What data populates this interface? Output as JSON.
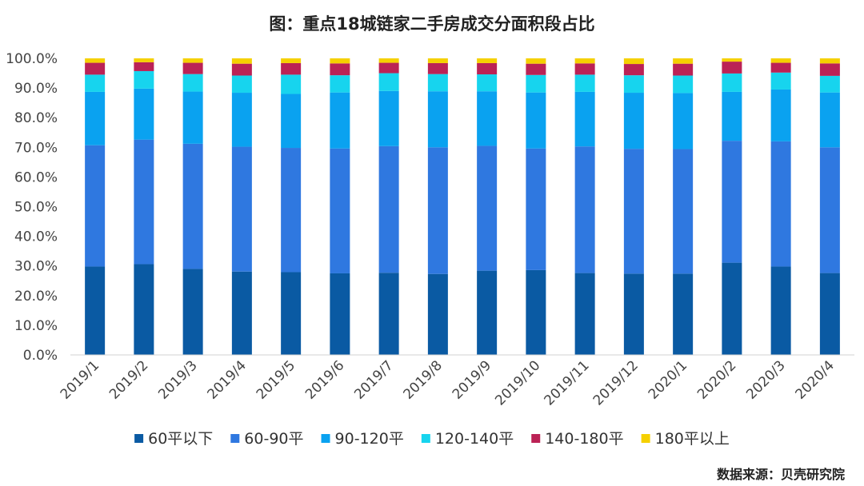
{
  "chart_data": {
    "type": "bar",
    "stacked": true,
    "title": "图：重点18城链家二手房成交分面积段占比",
    "xlabel": "",
    "ylabel": "",
    "ylim": [
      0,
      100
    ],
    "y_ticks": [
      "0.0%",
      "10.0%",
      "20.0%",
      "30.0%",
      "40.0%",
      "50.0%",
      "60.0%",
      "70.0%",
      "80.0%",
      "90.0%",
      "100.0%"
    ],
    "categories": [
      "2019/1",
      "2019/2",
      "2019/3",
      "2019/4",
      "2019/5",
      "2019/6",
      "2019/7",
      "2019/8",
      "2019/9",
      "2019/10",
      "2019/11",
      "2019/12",
      "2020/1",
      "2020/2",
      "2020/3",
      "2020/4"
    ],
    "legend_position": "bottom",
    "series": [
      {
        "name": "60平以下",
        "color": "#0a5aa3",
        "values": [
          29.8,
          30.6,
          29.0,
          28.1,
          27.9,
          27.5,
          27.7,
          27.3,
          28.4,
          28.6,
          27.6,
          27.4,
          27.4,
          31.1,
          29.8,
          27.6
        ]
      },
      {
        "name": "60-90平",
        "color": "#2f78e0",
        "values": [
          40.9,
          42.0,
          42.2,
          42.1,
          41.9,
          42.1,
          42.7,
          42.7,
          42.1,
          41.0,
          42.7,
          42.1,
          42.0,
          41.1,
          42.2,
          42.4
        ]
      },
      {
        "name": "90-120平",
        "color": "#0aa2f0",
        "values": [
          18.0,
          17.2,
          17.6,
          18.2,
          18.2,
          18.9,
          18.6,
          18.9,
          18.4,
          18.9,
          18.4,
          18.9,
          18.9,
          16.5,
          17.5,
          18.5
        ]
      },
      {
        "name": "120-140平",
        "color": "#17d4ee",
        "values": [
          5.8,
          5.9,
          5.9,
          5.8,
          6.5,
          5.8,
          6.0,
          5.8,
          5.7,
          5.9,
          5.8,
          5.9,
          5.9,
          6.2,
          5.7,
          5.6
        ]
      },
      {
        "name": "140-180平",
        "color": "#bb2255",
        "values": [
          4.0,
          3.0,
          3.8,
          4.0,
          3.9,
          4.0,
          3.5,
          3.7,
          3.8,
          3.8,
          3.8,
          3.8,
          4.0,
          4.0,
          3.3,
          4.2
        ]
      },
      {
        "name": "180平以上",
        "color": "#f5d000",
        "values": [
          1.5,
          1.3,
          1.5,
          1.8,
          1.6,
          1.7,
          1.5,
          1.6,
          1.6,
          1.8,
          1.7,
          1.9,
          1.8,
          1.1,
          1.5,
          1.7
        ]
      }
    ]
  },
  "source_text": "数据来源：贝壳研究院"
}
